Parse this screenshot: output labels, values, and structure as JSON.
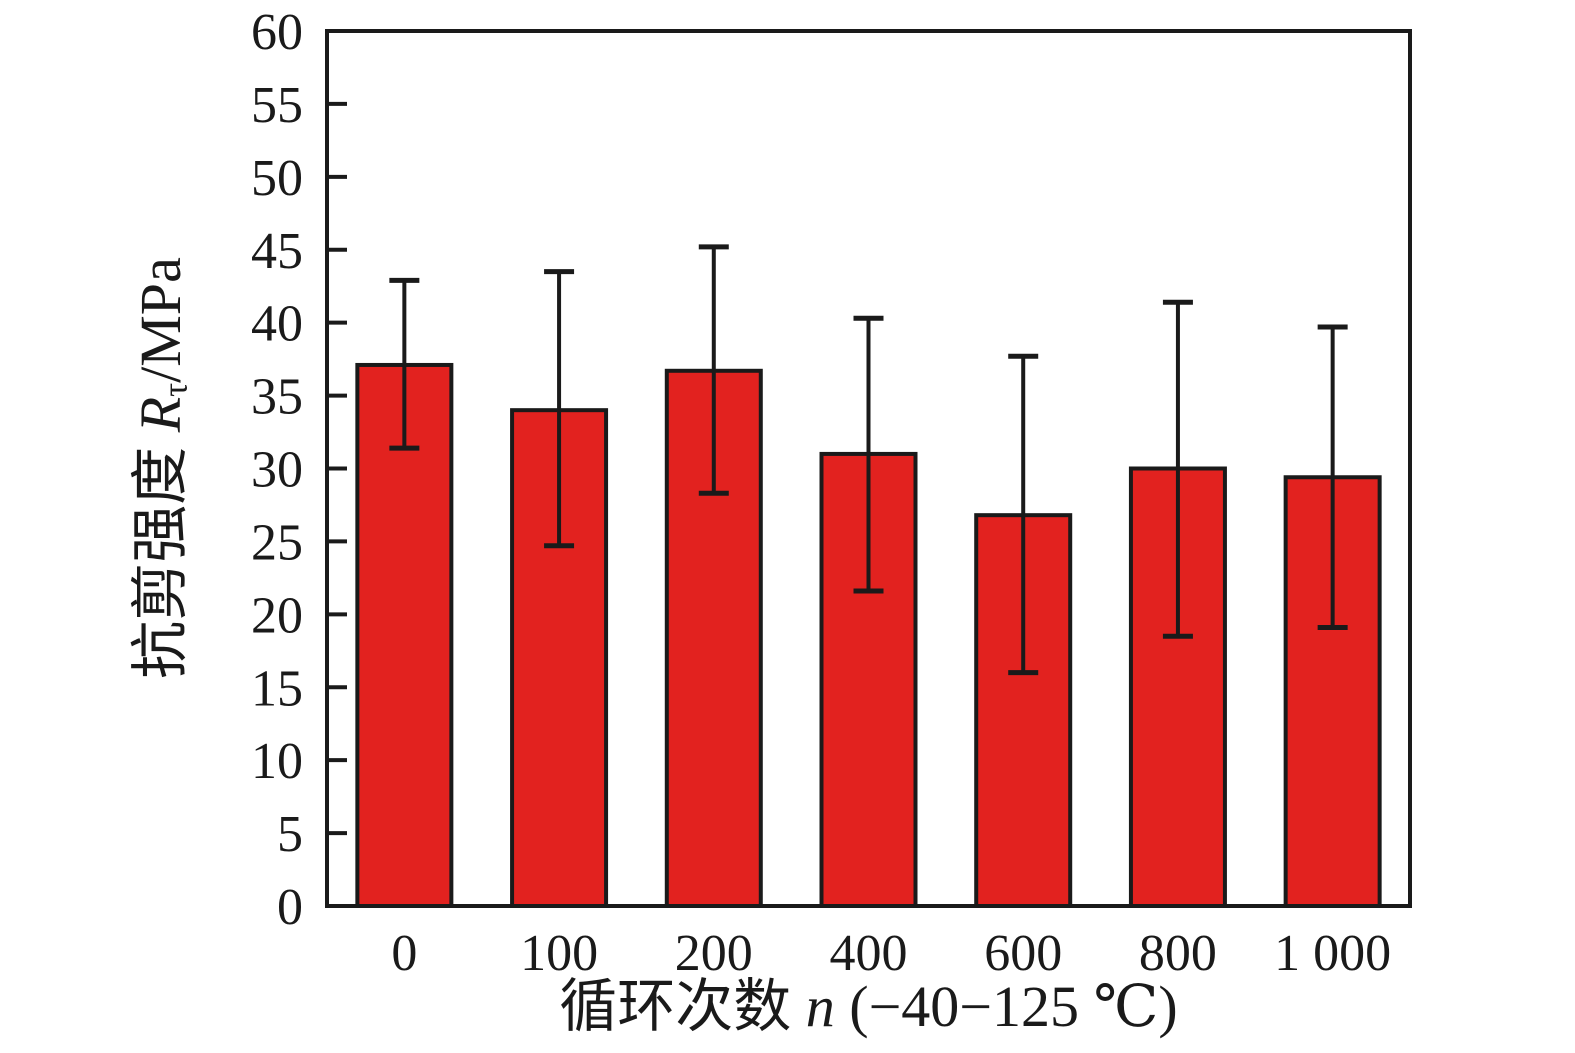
{
  "figure": {
    "background": "#ffffff",
    "text_color": "#1a1a1a"
  },
  "chart_data": {
    "type": "bar",
    "title": "",
    "categories": [
      "0",
      "100",
      "200",
      "400",
      "600",
      "800",
      "1 000"
    ],
    "values": [
      37.1,
      34.0,
      36.7,
      31.0,
      26.8,
      30.0,
      29.4
    ],
    "error_upper": [
      42.9,
      43.5,
      45.2,
      40.3,
      37.7,
      41.4,
      39.7
    ],
    "error_lower": [
      31.4,
      24.7,
      28.3,
      21.6,
      16.0,
      18.5,
      19.1
    ],
    "xlabel": "循环次数 n (−40−125 ℃)",
    "ylabel": "抗剪强度 Rτ/MPa",
    "xlabel_parts": {
      "prefix": "循环次数 ",
      "italic": "n",
      "suffix": " (−40−125 ℃)"
    },
    "ylabel_parts": {
      "prefix": "抗剪强度 ",
      "italic": "R",
      "subscript": "τ",
      "suffix": "/MPa"
    },
    "ylim": [
      0,
      60
    ],
    "ytick_step": 5,
    "grid": false,
    "legend": false,
    "bar_color": "#e2221f",
    "line_color": "#1a1a1a"
  }
}
